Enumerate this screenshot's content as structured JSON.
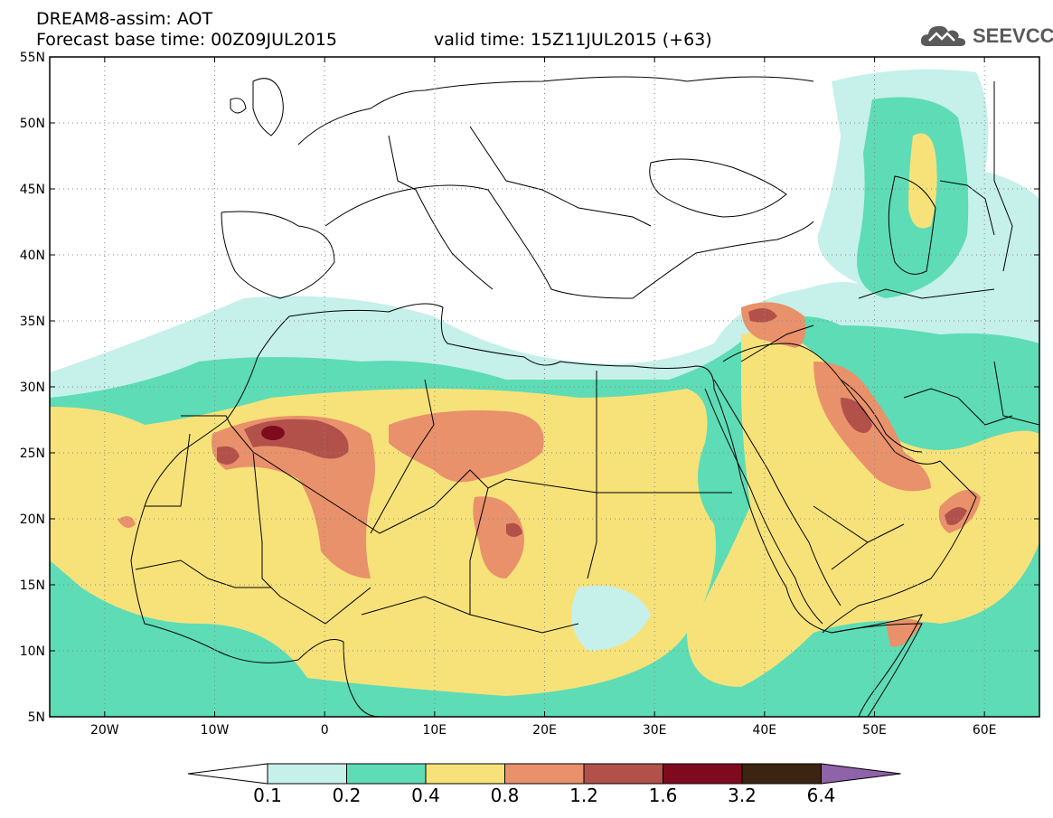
{
  "header": {
    "title": "DREAM8-assim: AOT",
    "base_time": "Forecast base time: 00Z09JUL2015",
    "valid_time": "valid time: 15Z11JUL2015 (+63)",
    "logo_text": "SEEVCCC"
  },
  "map": {
    "lon_range": [
      -25,
      65
    ],
    "lat_range": [
      5,
      55
    ],
    "lat_labels": [
      "5N",
      "10N",
      "15N",
      "20N",
      "25N",
      "30N",
      "35N",
      "40N",
      "45N",
      "50N",
      "55N"
    ],
    "lon_labels": [
      "20W",
      "10W",
      "0",
      "10E",
      "20E",
      "30E",
      "40E",
      "50E",
      "60E"
    ],
    "grid": "dotted"
  },
  "colorbar": {
    "labels": [
      "0.1",
      "0.2",
      "0.4",
      "0.8",
      "1.2",
      "1.6",
      "3.2",
      "6.4"
    ],
    "colors": [
      "#ffffff",
      "#c6f0ea",
      "#5ddcb6",
      "#f7e27a",
      "#e9916b",
      "#b2514a",
      "#7f0a1e",
      "#3b2412",
      "#8f63a7"
    ]
  }
}
